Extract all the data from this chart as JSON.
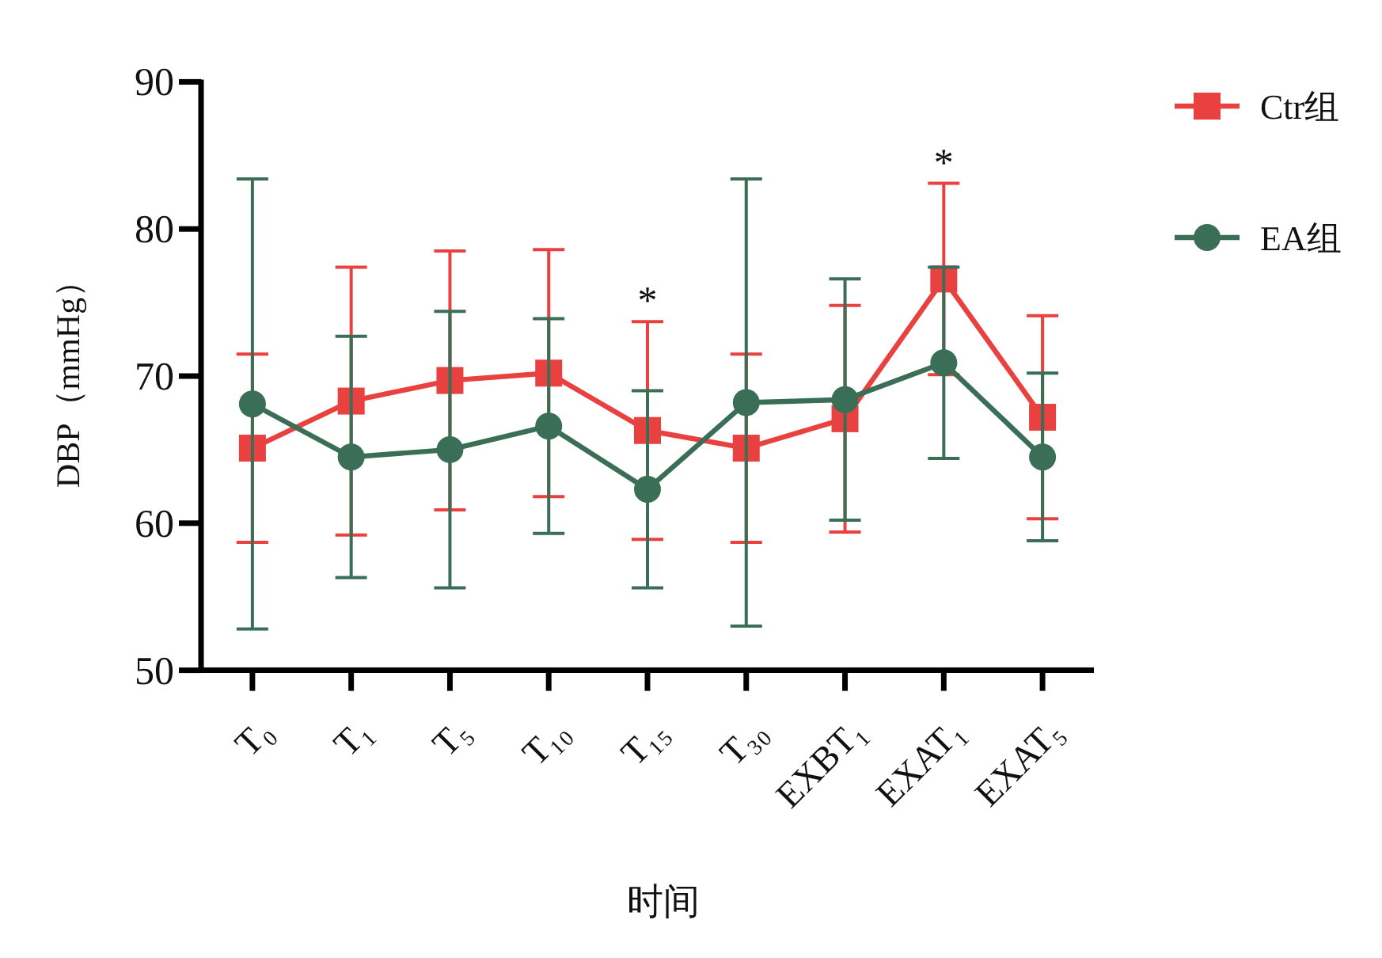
{
  "chart_data": {
    "type": "line",
    "xlabel": "时间",
    "ylabel": "DBP（mmHg）",
    "categories": [
      "T₀",
      "T₁",
      "T₅",
      "T₁₀",
      "T₁₅",
      "T₃₀",
      "EXBT₁",
      "EXAT₁",
      "EXAT₅"
    ],
    "ylim": [
      50,
      90
    ],
    "yticks": [
      50,
      60,
      70,
      80,
      90
    ],
    "legend": "top right",
    "series": [
      {
        "name": "Ctr组",
        "color": "#e8413f",
        "marker": "square",
        "values": [
          65.1,
          68.3,
          69.7,
          70.2,
          66.3,
          65.1,
          67.1,
          76.6,
          67.2
        ],
        "errors": [
          6.4,
          9.1,
          8.8,
          8.4,
          7.4,
          6.4,
          7.7,
          6.5,
          6.9
        ]
      },
      {
        "name": "EA组",
        "color": "#3b6e56",
        "marker": "circle",
        "values": [
          68.1,
          64.5,
          65.0,
          66.6,
          62.3,
          68.2,
          68.4,
          70.9,
          64.5
        ],
        "errors": [
          15.3,
          8.2,
          9.4,
          7.3,
          6.7,
          15.2,
          8.2,
          6.5,
          5.7
        ]
      }
    ],
    "annotations": [
      {
        "text": "*",
        "x": "T₁₅",
        "y": 66.3
      },
      {
        "text": "*",
        "x": "EXAT₁",
        "y": 76.6
      }
    ]
  }
}
